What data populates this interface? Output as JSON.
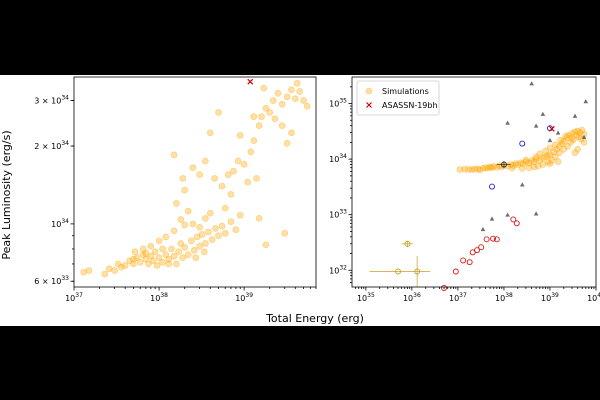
{
  "figure": {
    "xlabel": "Total Energy (erg)",
    "ylabel": "Peak Luminosity (erg/s)"
  },
  "chart_data": [
    {
      "type": "scatter",
      "title": "",
      "xscale": "log",
      "yscale": "log",
      "xlim": [
        1e+37,
        7e+39
      ],
      "ylim": [
        5.7e+33,
        3.7e+34
      ],
      "x_ticks": [
        {
          "value": 1e+37,
          "base": "10",
          "exp": "37"
        },
        {
          "value": 1e+38,
          "base": "10",
          "exp": "38"
        },
        {
          "value": 1e+39,
          "base": "10",
          "exp": "39"
        }
      ],
      "y_ticks": [
        {
          "value": 6e+33,
          "base": "6 × 10",
          "exp": "33"
        },
        {
          "value": 1e+34,
          "base": "10",
          "exp": "34"
        },
        {
          "value": 2e+34,
          "base": "2 × 10",
          "exp": "34"
        },
        {
          "value": 3e+34,
          "base": "3 × 10",
          "exp": "34"
        }
      ],
      "series": [
        {
          "name": "Simulations",
          "color": "#ffa500",
          "points": [
            [
              1.3e+37,
              6.5e+33
            ],
            [
              1.5e+37,
              6.6e+33
            ],
            [
              2.3e+37,
              6.4e+33
            ],
            [
              2.6e+37,
              6.7e+33
            ],
            [
              3e+37,
              6.6e+33
            ],
            [
              3.3e+37,
              7e+33
            ],
            [
              3.6e+37,
              6.8e+33
            ],
            [
              4e+37,
              6.9e+33
            ],
            [
              4.5e+37,
              7.2e+33
            ],
            [
              5e+37,
              7e+33
            ],
            [
              5.5e+37,
              7.4e+33
            ],
            [
              6e+37,
              7.1e+33
            ],
            [
              6.5e+37,
              7.6e+33
            ],
            [
              7e+37,
              7.3e+33
            ],
            [
              7.5e+37,
              7e+33
            ],
            [
              8e+37,
              7.5e+33
            ],
            [
              8.5e+37,
              7.2e+33
            ],
            [
              9e+37,
              7.8e+33
            ],
            [
              9.5e+37,
              6.9e+33
            ],
            [
              1e+38,
              7.4e+33
            ],
            [
              1.1e+38,
              7.1e+33
            ],
            [
              1.2e+38,
              7.6e+33
            ],
            [
              1.3e+38,
              7.3e+33
            ],
            [
              1.4e+38,
              8e+33
            ],
            [
              1.5e+38,
              7.5e+33
            ],
            [
              1.6e+38,
              7e+33
            ],
            [
              1.7e+38,
              7.8e+33
            ],
            [
              1.8e+38,
              8.4e+33
            ],
            [
              1.9e+38,
              7.4e+33
            ],
            [
              2e+38,
              8.1e+33
            ],
            [
              2.2e+38,
              7.6e+33
            ],
            [
              2.4e+38,
              8.6e+33
            ],
            [
              2.6e+38,
              7.9e+33
            ],
            [
              2.8e+38,
              8.9e+33
            ],
            [
              3e+38,
              8.2e+33
            ],
            [
              3.2e+38,
              9.1e+33
            ],
            [
              3.5e+38,
              8.4e+33
            ],
            [
              3.8e+38,
              9.3e+33
            ],
            [
              4.2e+38,
              8.7e+33
            ],
            [
              4.6e+38,
              9.6e+33
            ],
            [
              5e+38,
              9e+33
            ],
            [
              5.5e+38,
              9.8e+33
            ],
            [
              6e+38,
              9.2e+33
            ],
            [
              7e+38,
              1.02e+34
            ],
            [
              8e+38,
              9.5e+33
            ],
            [
              9e+38,
              1.08e+34
            ],
            [
              1.2e+38,
              8.9e+33
            ],
            [
              1.5e+38,
              9.4e+33
            ],
            [
              2e+38,
              9.9e+33
            ],
            [
              2.5e+38,
              1e+34
            ],
            [
              3e+38,
              9.7e+33
            ],
            [
              3.5e+38,
              1.05e+34
            ],
            [
              4e+38,
              1.1e+34
            ],
            [
              1.8e+38,
              1.04e+34
            ],
            [
              2.2e+38,
              1.12e+34
            ],
            [
              1e+38,
              8.6e+33
            ],
            [
              8e+37,
              8.2e+33
            ],
            [
              6.5e+37,
              8e+33
            ],
            [
              5.2e+37,
              7.8e+33
            ],
            [
              1.6e+38,
              1.2e+34
            ],
            [
              2e+38,
              1.35e+34
            ],
            [
              1.9e+38,
              1.5e+34
            ],
            [
              2.5e+38,
              1.65e+34
            ],
            [
              1.5e+38,
              1.85e+34
            ],
            [
              3e+38,
              1.55e+34
            ],
            [
              3.5e+38,
              1.75e+34
            ],
            [
              4.5e+38,
              1.5e+34
            ],
            [
              5.5e+38,
              1.4e+34
            ],
            [
              6.5e+38,
              1.55e+34
            ],
            [
              7.5e+38,
              1.6e+34
            ],
            [
              8.5e+38,
              1.75e+34
            ],
            [
              1e+39,
              1.7e+34
            ],
            [
              1.2e+39,
              1.9e+34
            ],
            [
              1.3e+39,
              2.1e+34
            ],
            [
              1.5e+39,
              2.4e+34
            ],
            [
              1.6e+39,
              2.6e+34
            ],
            [
              1.8e+39,
              2.8e+34
            ],
            [
              2e+39,
              2.7e+34
            ],
            [
              2.2e+39,
              3e+34
            ],
            [
              2.5e+39,
              3.2e+34
            ],
            [
              2.8e+39,
              2.9e+34
            ],
            [
              3.2e+39,
              3.1e+34
            ],
            [
              3.6e+39,
              3.3e+34
            ],
            [
              4e+39,
              3.05e+34
            ],
            [
              4.5e+39,
              3.25e+34
            ],
            [
              5e+39,
              3e+34
            ],
            [
              5.5e+39,
              2.85e+34
            ],
            [
              4.2e+39,
              3.5e+34
            ],
            [
              1.7e+39,
              3.35e+34
            ],
            [
              9e+38,
              2.2e+34
            ],
            [
              4e+38,
              2.25e+34
            ],
            [
              5e+38,
              2.7e+34
            ],
            [
              2.8e+39,
              2.4e+34
            ],
            [
              3.2e+39,
              2.05e+34
            ],
            [
              3.6e+39,
              2.25e+34
            ],
            [
              1.4e+39,
              1.5e+34
            ],
            [
              1.1e+39,
              1.45e+34
            ],
            [
              1.5e+39,
              1.05e+34
            ],
            [
              1.8e+39,
              8.3e+33
            ],
            [
              3e+39,
              9.2e+33
            ],
            [
              1.3e+39,
              2.6e+34
            ],
            [
              2.3e+39,
              2.55e+34
            ],
            [
              7e+38,
              1.3e+34
            ],
            [
              6e+38,
              1.15e+34
            ],
            [
              5e+37,
              7.3e+33
            ],
            [
              7e+37,
              7.7e+33
            ],
            [
              1.1e+38,
              8e+33
            ],
            [
              1.3e+38,
              7e+33
            ],
            [
              2.7e+38,
              7.4e+33
            ],
            [
              3.4e+38,
              7.8e+33
            ]
          ]
        },
        {
          "name": "ASASSN-19bh",
          "color": "#d00000",
          "points": [
            [
              1.18e+39,
              3.55e+34
            ]
          ]
        }
      ]
    },
    {
      "type": "scatter",
      "title": "",
      "xscale": "log",
      "yscale": "log",
      "xlim": [
        5e+34,
        1e+40
      ],
      "ylim": [
        5e+31,
        3e+35
      ],
      "legend_position": "top-left",
      "legend": [
        {
          "label": "Simulations",
          "marker": "circle",
          "color": "#ffa500"
        },
        {
          "label": "ASASSN-19bh",
          "marker": "x",
          "color": "#d00000"
        }
      ],
      "x_ticks": [
        {
          "value": 1e+35,
          "base": "10",
          "exp": "35"
        },
        {
          "value": 1e+36,
          "base": "10",
          "exp": "36"
        },
        {
          "value": 1e+37,
          "base": "10",
          "exp": "37"
        },
        {
          "value": 1e+38,
          "base": "10",
          "exp": "38"
        },
        {
          "value": 1e+39,
          "base": "10",
          "exp": "39"
        },
        {
          "value": 1e+40,
          "base": "10",
          "exp": "40"
        }
      ],
      "y_ticks": [
        {
          "value": 1e+32,
          "base": "10",
          "exp": "32"
        },
        {
          "value": 1e+33,
          "base": "10",
          "exp": "33"
        },
        {
          "value": 1e+34,
          "base": "10",
          "exp": "34"
        },
        {
          "value": 1e+35,
          "base": "10",
          "exp": "35"
        }
      ],
      "series": [
        {
          "name": "Simulations",
          "color": "#ffa500",
          "points": [
            [
              2e+37,
              6.5e+33
            ],
            [
              2.3e+37,
              6.6e+33
            ],
            [
              2.7e+37,
              6.7e+33
            ],
            [
              3e+37,
              6.4e+33
            ],
            [
              3.5e+37,
              6.8e+33
            ],
            [
              4e+37,
              7e+33
            ],
            [
              4.5e+37,
              6.9e+33
            ],
            [
              5e+37,
              7.2e+33
            ],
            [
              5.5e+37,
              7e+33
            ],
            [
              6e+37,
              7.4e+33
            ],
            [
              7e+37,
              7.1e+33
            ],
            [
              8e+37,
              7.6e+33
            ],
            [
              9e+37,
              7.3e+33
            ],
            [
              1e+38,
              7.8e+33
            ],
            [
              1.2e+38,
              7.5e+33
            ],
            [
              1.4e+38,
              8e+33
            ],
            [
              1.6e+38,
              7.7e+33
            ],
            [
              1.8e+38,
              8.3e+33
            ],
            [
              2e+38,
              7.9e+33
            ],
            [
              2.3e+38,
              8.6e+33
            ],
            [
              2.6e+38,
              8.2e+33
            ],
            [
              3e+38,
              9e+33
            ],
            [
              3.5e+38,
              8.5e+33
            ],
            [
              4e+38,
              9.4e+33
            ],
            [
              4.5e+38,
              9e+33
            ],
            [
              5e+38,
              1e+34
            ],
            [
              6e+38,
              9.5e+33
            ],
            [
              7e+38,
              1.05e+34
            ],
            [
              8e+38,
              1.1e+34
            ],
            [
              9e+38,
              1.15e+34
            ],
            [
              1e+39,
              1.2e+34
            ],
            [
              1.2e+39,
              1.35e+34
            ],
            [
              1.4e+39,
              1.5e+34
            ],
            [
              1.6e+39,
              1.7e+34
            ],
            [
              1.8e+39,
              1.9e+34
            ],
            [
              2e+39,
              2.1e+34
            ],
            [
              2.3e+39,
              2.4e+34
            ],
            [
              2.6e+39,
              2.7e+34
            ],
            [
              3e+39,
              2.9e+34
            ],
            [
              3.5e+39,
              3.1e+34
            ],
            [
              4e+39,
              3.2e+34
            ],
            [
              4.5e+39,
              3e+34
            ],
            [
              5e+39,
              3.3e+34
            ],
            [
              5.5e+39,
              2.8e+34
            ],
            [
              4.2e+39,
              2.5e+34
            ],
            [
              3.2e+39,
              2.2e+34
            ],
            [
              2.8e+39,
              2e+34
            ],
            [
              2.4e+39,
              1.7e+34
            ],
            [
              2e+39,
              1.5e+34
            ],
            [
              1.6e+39,
              1.3e+34
            ],
            [
              1.3e+39,
              1.1e+34
            ],
            [
              1.1e+39,
              9.5e+33
            ],
            [
              9e+38,
              8.8e+33
            ],
            [
              7e+38,
              8e+33
            ],
            [
              5.5e+38,
              7.5e+33
            ],
            [
              4.5e+38,
              7.2e+33
            ],
            [
              3.5e+38,
              7e+33
            ],
            [
              2.5e+38,
              6.8e+33
            ],
            [
              1.5e+38,
              6.9e+33
            ],
            [
              6e+38,
              1.25e+34
            ],
            [
              8e+38,
              1.4e+34
            ],
            [
              1e+39,
              1.6e+34
            ],
            [
              1.3e+39,
              1.8e+34
            ],
            [
              1.7e+39,
              2.2e+34
            ],
            [
              2.2e+39,
              2.6e+34
            ],
            [
              3e+39,
              2.4e+34
            ],
            [
              3.8e+39,
              2.7e+34
            ],
            [
              4.8e+39,
              2.3e+34
            ],
            [
              5.5e+39,
              2e+34
            ],
            [
              1.1e+37,
              6.5e+33
            ],
            [
              1.4e+37,
              6.6e+33
            ],
            [
              1.7e+37,
              6.5e+33
            ],
            [
              5e+38,
              1.1e+34
            ],
            [
              3e+38,
              9.6e+33
            ],
            [
              1e+39,
              8.3e+33
            ],
            [
              1.5e+39,
              9e+33
            ],
            [
              3.5e+39,
              1.3e+34
            ],
            [
              4e+39,
              1.5e+34
            ]
          ]
        },
        {
          "name": "ASASSN-19bh",
          "color": "#d00000",
          "points": [
            [
              1.1e+39,
              3.5e+34
            ]
          ]
        }
      ],
      "observed": [
        {
          "color": "#c8a020",
          "points": [
            [
              5e+35,
              9.5e+31,
              1.2e+35,
              2.5e+36,
              0,
              0
            ],
            [
              1.3e+36,
              9.5e+31,
              0,
              0,
              5e+31,
              1.8e+32
            ],
            [
              8e+35,
              3e+32,
              6e+35,
              1.05e+36,
              2.6e+32,
              3.4e+32
            ]
          ]
        },
        {
          "color": "#dd1111",
          "points": [
            [
              5e+36,
              4.8e+31
            ],
            [
              9e+36,
              9.5e+31
            ],
            [
              1.3e+37,
              1.5e+32
            ],
            [
              1.8e+37,
              1.4e+32
            ],
            [
              2.1e+37,
              2.1e+32
            ],
            [
              2.6e+37,
              2.3e+32
            ],
            [
              3.2e+37,
              2.6e+32
            ],
            [
              4.2e+37,
              3.6e+32
            ],
            [
              5.8e+37,
              3.7e+32
            ],
            [
              7e+37,
              3.6e+32
            ],
            [
              1.6e+38,
              8.2e+32
            ],
            [
              1.9e+38,
              7e+32
            ]
          ]
        },
        {
          "color": "#1a1acc",
          "points": [
            [
              5.5e+37,
              3.2e+33
            ],
            [
              2.5e+38,
              1.9e+34
            ],
            [
              1e+39,
              3.6e+34
            ]
          ]
        },
        {
          "color": "#333333",
          "points": [
            [
              1e+38,
              8e+33,
              7e+37,
              1.4e+38,
              6.8e+33,
              9.2e+33
            ]
          ]
        }
      ],
      "triangles": [
        [
          3.5e+37,
          5.5e+32
        ],
        [
          5.5e+37,
          8.5e+32
        ],
        [
          1.2e+38,
          1e+33
        ],
        [
          2.5e+38,
          3.5e+33
        ],
        [
          5e+38,
          1.05e+33
        ],
        [
          1.2e+38,
          4.5e+34
        ],
        [
          5e+38,
          4e+34
        ],
        [
          7e+38,
          6.5e+34
        ],
        [
          1.5e+39,
          3e+34
        ],
        [
          3.5e+39,
          6e+34
        ],
        [
          4e+38,
          2.3e+35
        ],
        [
          6e+39,
          1.1e+35
        ],
        [
          5.5e+39,
          2.5e+34
        ],
        [
          1e+39,
          2.2e+34
        ]
      ]
    }
  ]
}
